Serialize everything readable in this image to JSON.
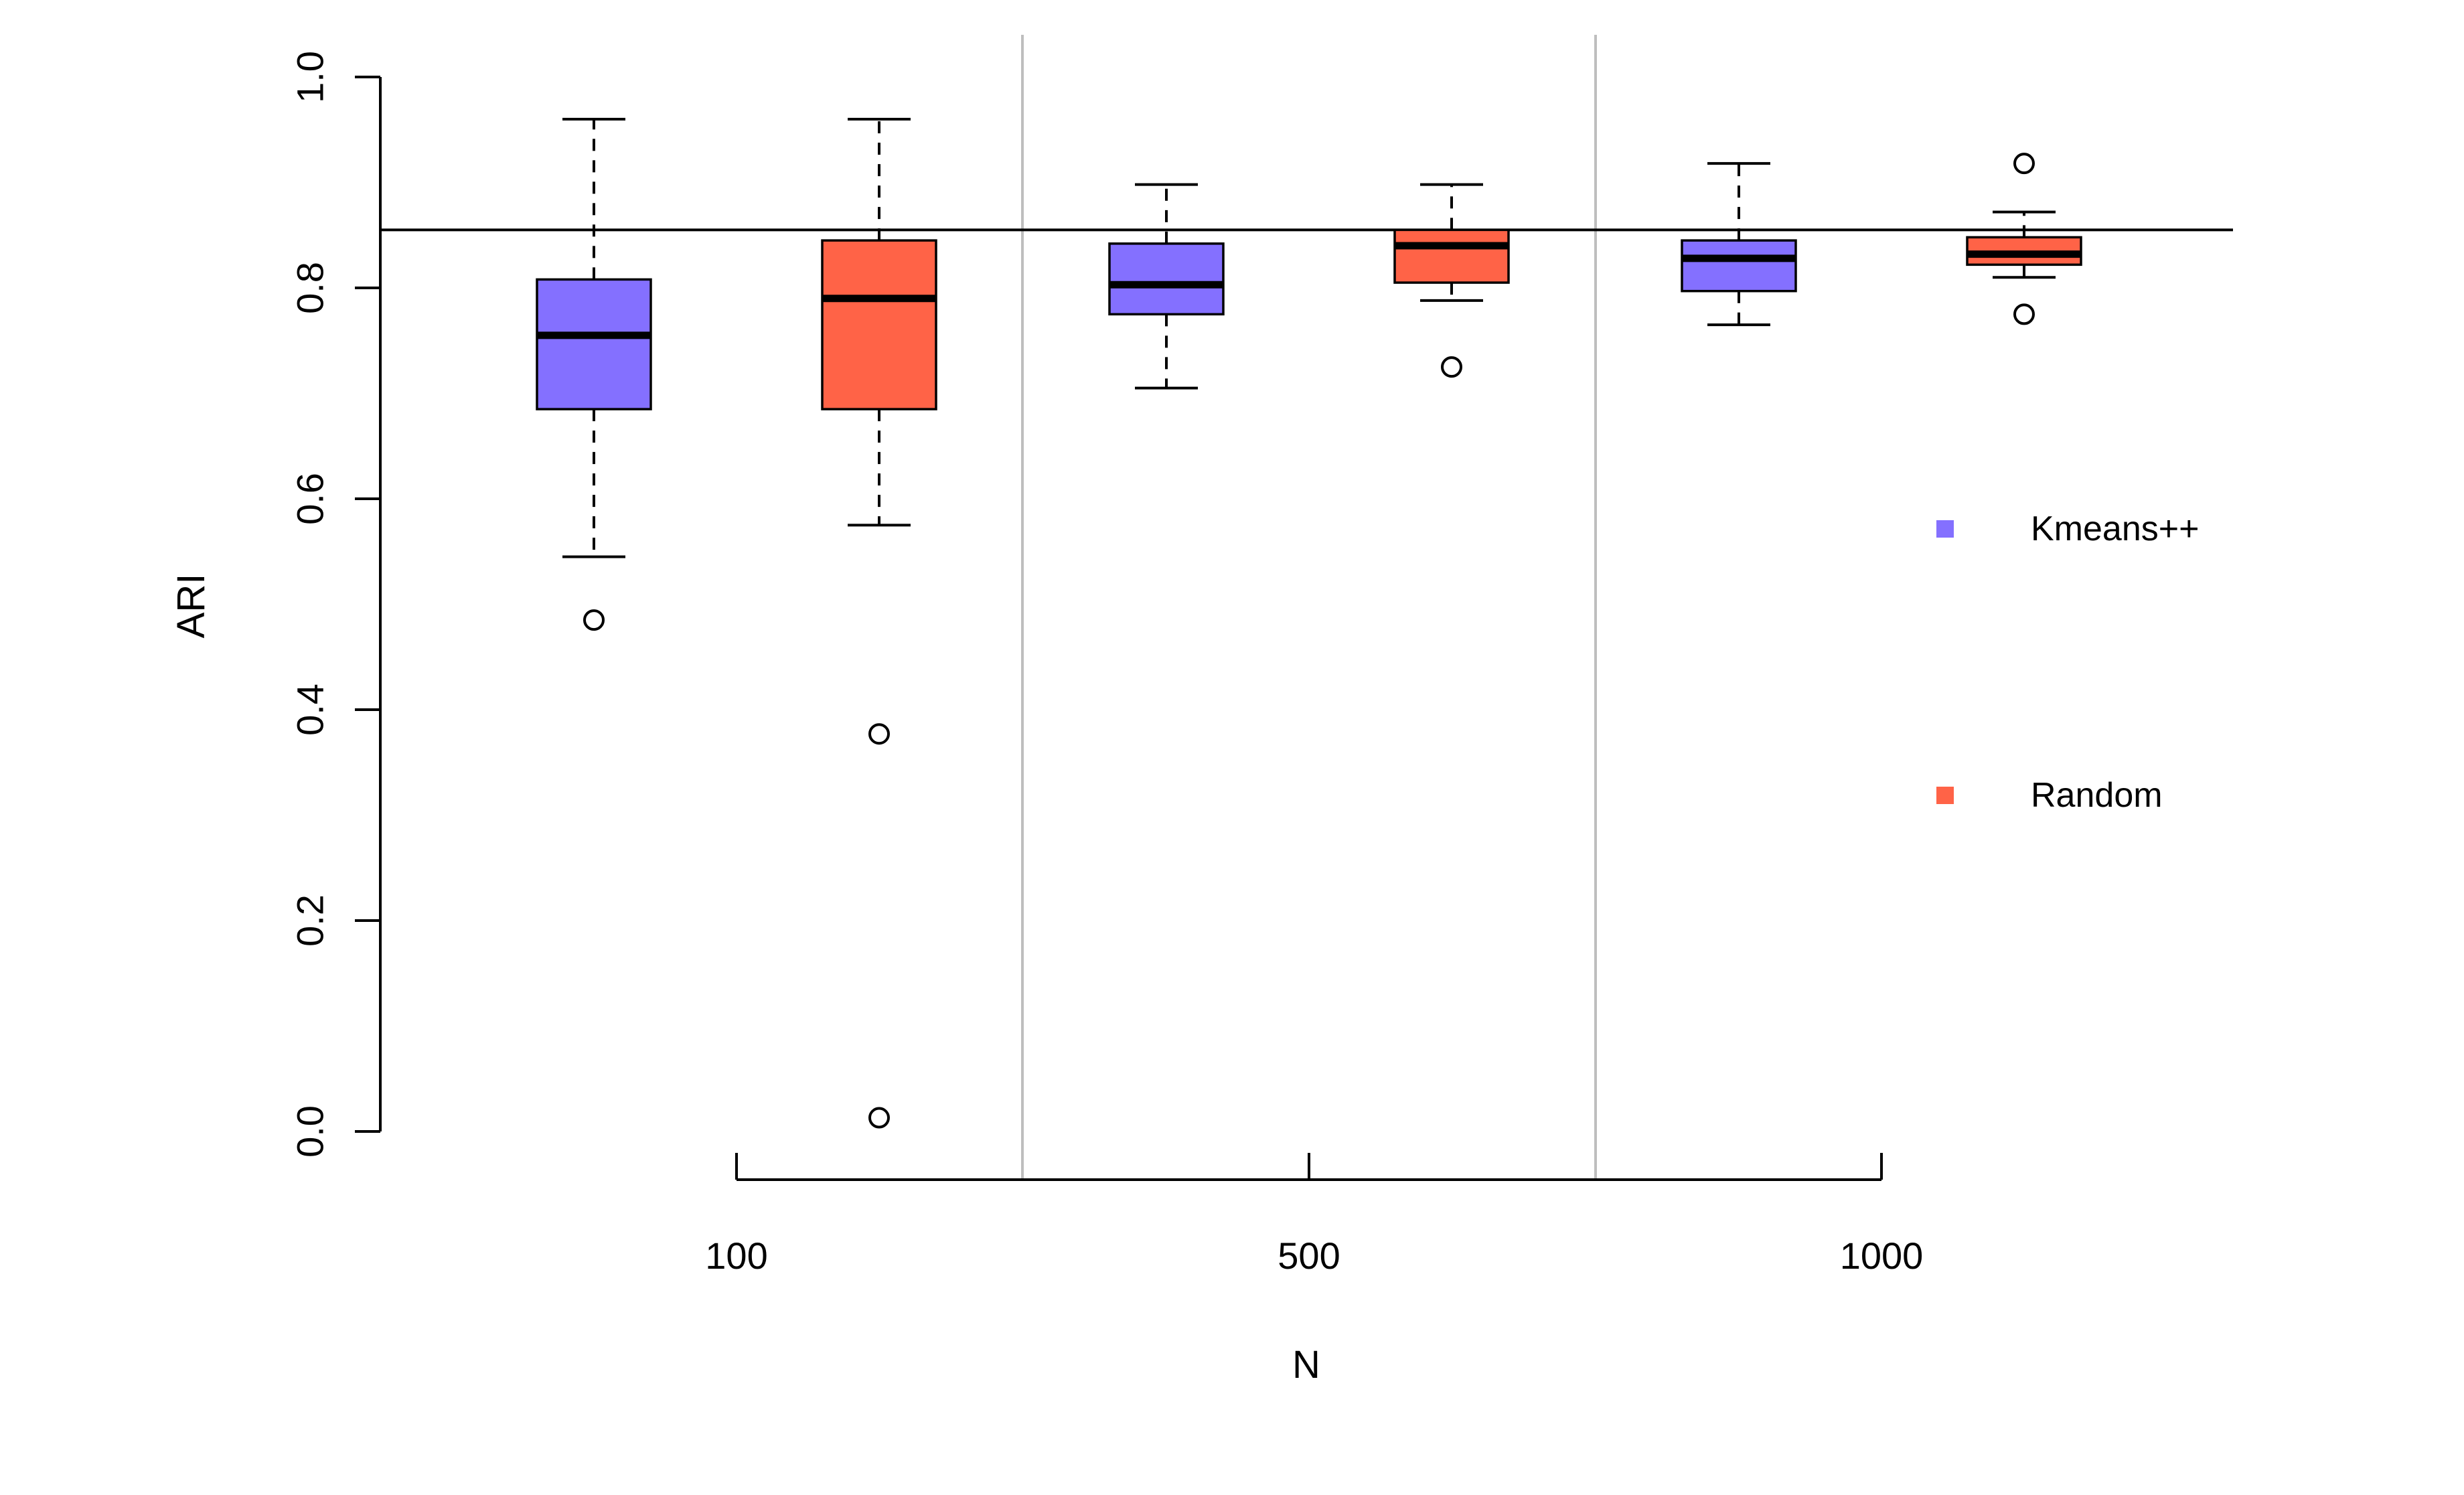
{
  "chart_data": {
    "type": "boxplot",
    "title": "",
    "xlabel": "N",
    "ylabel": "ARI",
    "ylim": [
      0,
      1
    ],
    "yticks": [
      "0.0",
      "0.2",
      "0.4",
      "0.6",
      "0.8",
      "1.0"
    ],
    "categories": [
      "100",
      "500",
      "1000"
    ],
    "reference_line": 0.855,
    "grid": false,
    "legend_position": "right",
    "series": [
      {
        "name": "Kmeans++",
        "color": "#8470FF",
        "boxes": [
          {
            "category": "100",
            "whisker_low": 0.545,
            "q1": 0.685,
            "median": 0.755,
            "q3": 0.808,
            "whisker_high": 0.96,
            "outliers": [
              0.485
            ]
          },
          {
            "category": "500",
            "whisker_low": 0.705,
            "q1": 0.775,
            "median": 0.803,
            "q3": 0.842,
            "whisker_high": 0.898,
            "outliers": []
          },
          {
            "category": "1000",
            "whisker_low": 0.765,
            "q1": 0.797,
            "median": 0.828,
            "q3": 0.845,
            "whisker_high": 0.918,
            "outliers": []
          }
        ]
      },
      {
        "name": "Random",
        "color": "#FF6347",
        "boxes": [
          {
            "category": "100",
            "whisker_low": 0.575,
            "q1": 0.685,
            "median": 0.79,
            "q3": 0.845,
            "whisker_high": 0.96,
            "outliers": [
              0.377,
              0.013
            ]
          },
          {
            "category": "500",
            "whisker_low": 0.788,
            "q1": 0.805,
            "median": 0.84,
            "q3": 0.855,
            "whisker_high": 0.898,
            "outliers": [
              0.725
            ]
          },
          {
            "category": "1000",
            "whisker_low": 0.81,
            "q1": 0.822,
            "median": 0.832,
            "q3": 0.848,
            "whisker_high": 0.872,
            "outliers": [
              0.918,
              0.775
            ]
          }
        ]
      }
    ]
  }
}
